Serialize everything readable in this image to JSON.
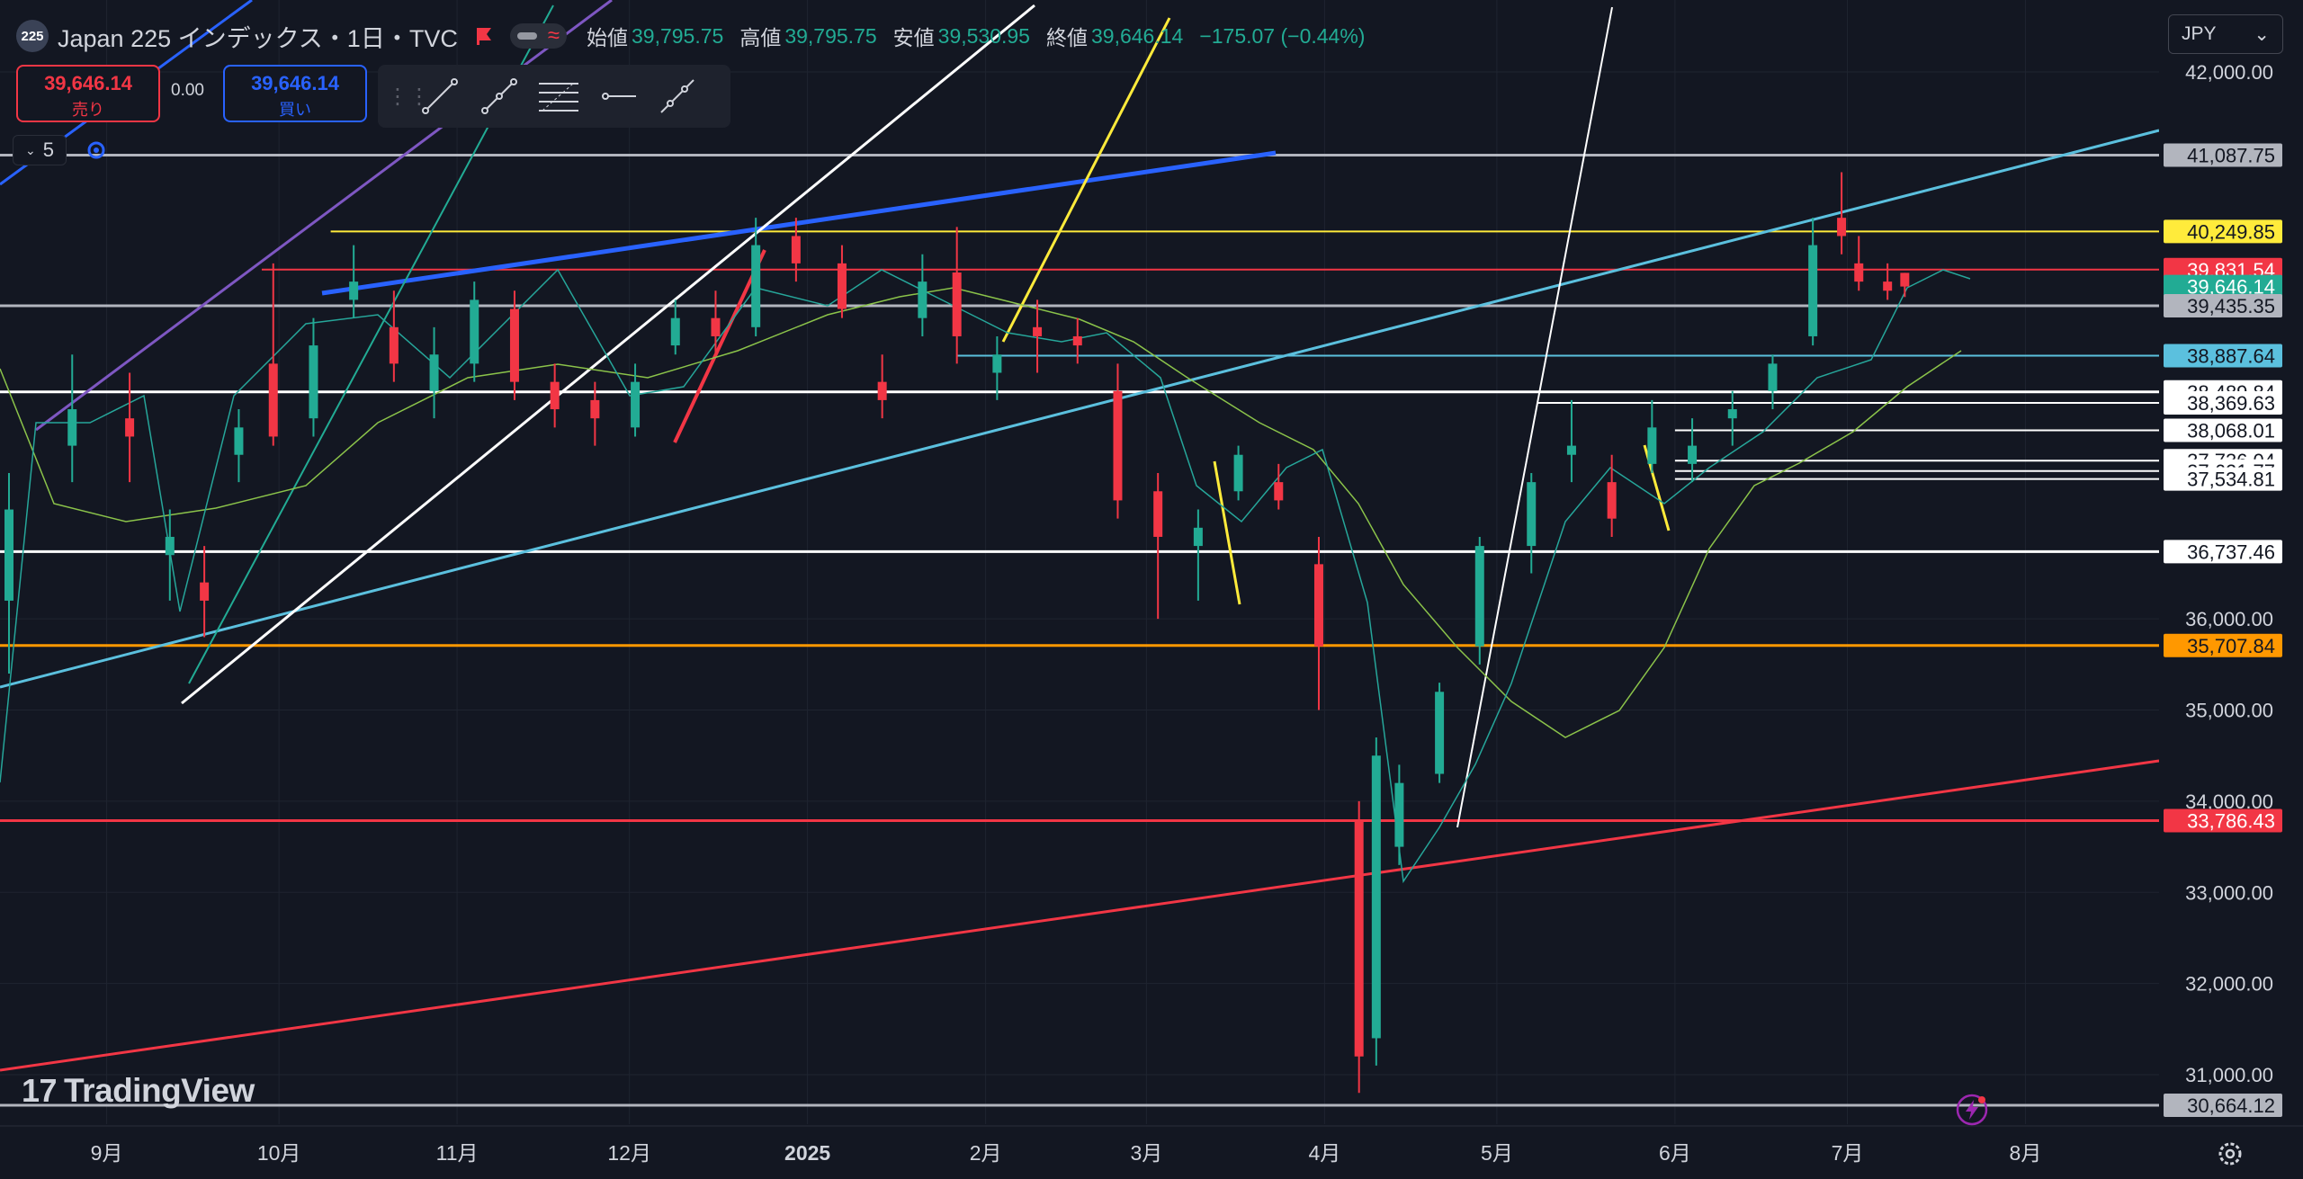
{
  "header": {
    "symbol_logo": "225",
    "title": "Japan 225 インデックス・1日・TVC",
    "ohlc": [
      {
        "label": "始値",
        "value": "39,795.75"
      },
      {
        "label": "高値",
        "value": "39,795.75"
      },
      {
        "label": "安値",
        "value": "39,530.95"
      },
      {
        "label": "終値",
        "value": "39,646.14"
      },
      {
        "label": "",
        "value": "−175.07 (−0.44%)"
      }
    ]
  },
  "trade": {
    "sell_price": "39,646.14",
    "sell_label": "売り",
    "spread": "0.00",
    "buy_price": "39,646.14",
    "buy_label": "買い"
  },
  "interval": "5",
  "currency": "JPY",
  "watermark": "TradingView",
  "toolbar_icons": [
    "trend-line-icon",
    "trend-angle-icon",
    "fib-retracement-icon",
    "horizontal-ray-icon",
    "extended-line-icon"
  ],
  "colors": {
    "up": "#22ab94",
    "down": "#f23645",
    "bg": "#131722",
    "grid": "#1f2430"
  },
  "price_axis": {
    "ticks": [
      {
        "price": 42000,
        "label": "42,000.00"
      },
      {
        "price": 36000,
        "label": "36,000.00"
      },
      {
        "price": 35000,
        "label": "35,000.00"
      },
      {
        "price": 34000,
        "label": "34,000.00"
      },
      {
        "price": 33000,
        "label": "33,000.00"
      },
      {
        "price": 32000,
        "label": "32,000.00"
      },
      {
        "price": 31000,
        "label": "31,000.00"
      }
    ],
    "badges": [
      {
        "price": 41087.75,
        "label": "41,087.75",
        "bg": "#b2b5be",
        "fg": "#131722"
      },
      {
        "price": 40249.85,
        "label": "40,249.85",
        "bg": "#ffeb3b",
        "fg": "#131722"
      },
      {
        "price": 39831.54,
        "label": "39,831.54",
        "bg": "#f23645",
        "fg": "#ffffff"
      },
      {
        "price": 39646.14,
        "label": "39,646.14",
        "bg": "#22ab94",
        "fg": "#ffffff"
      },
      {
        "price": 39435.35,
        "label": "39,435.35",
        "bg": "#b2b5be",
        "fg": "#131722"
      },
      {
        "price": 38887.64,
        "label": "38,887.64",
        "bg": "#5bc0de",
        "fg": "#131722"
      },
      {
        "price": 38489.84,
        "label": "38,489.84",
        "bg": "#ffffff",
        "fg": "#131722"
      },
      {
        "price": 38369.63,
        "label": "38,369.63",
        "bg": "#ffffff",
        "fg": "#131722"
      },
      {
        "price": 38068.01,
        "label": "38,068.01",
        "bg": "#ffffff",
        "fg": "#131722"
      },
      {
        "price": 37736.04,
        "label": "37,736.04",
        "bg": "#ffffff",
        "fg": "#131722"
      },
      {
        "price": 37621.77,
        "label": "37,621.77",
        "bg": "#ffffff",
        "fg": "#131722"
      },
      {
        "price": 37534.81,
        "label": "37,534.81",
        "bg": "#ffffff",
        "fg": "#131722"
      },
      {
        "price": 36737.46,
        "label": "36,737.46",
        "bg": "#ffffff",
        "fg": "#131722"
      },
      {
        "price": 35707.84,
        "label": "35,707.84",
        "bg": "#ff9800",
        "fg": "#131722"
      },
      {
        "price": 33786.43,
        "label": "33,786.43",
        "bg": "#f23645",
        "fg": "#ffffff"
      },
      {
        "price": 30664.12,
        "label": "30,664.12",
        "bg": "#b2b5be",
        "fg": "#131722"
      }
    ]
  },
  "time_axis": [
    {
      "date": "2024-09-01",
      "label": "9月"
    },
    {
      "date": "2024-10-01",
      "label": "10月"
    },
    {
      "date": "2024-11-01",
      "label": "11月"
    },
    {
      "date": "2024-12-01",
      "label": "12月"
    },
    {
      "date": "2025-01-01",
      "label": "2025",
      "bold": true
    },
    {
      "date": "2025-02-01",
      "label": "2月"
    },
    {
      "date": "2025-03-01",
      "label": "3月"
    },
    {
      "date": "2025-04-01",
      "label": "4月"
    },
    {
      "date": "2025-05-01",
      "label": "5月"
    },
    {
      "date": "2025-06-01",
      "label": "6月"
    },
    {
      "date": "2025-07-01",
      "label": "7月"
    },
    {
      "date": "2025-08-01",
      "label": "8月"
    }
  ],
  "horizontal_lines": [
    {
      "price": 41087.75,
      "color": "#b2b5be"
    },
    {
      "price": 40249.85,
      "color": "#ffeb3b",
      "from": "2024-10-10"
    },
    {
      "price": 39831.54,
      "color": "#f23645",
      "from": "2024-09-28"
    },
    {
      "price": 39435.35,
      "color": "#b2b5be"
    },
    {
      "price": 38887.64,
      "color": "#5bc0de",
      "from": "2025-01-27"
    },
    {
      "price": 38489.84,
      "color": "#ffffff"
    },
    {
      "price": 38369.63,
      "color": "#ffffff",
      "from": "2025-05-08"
    },
    {
      "price": 38068.01,
      "color": "#ffffff",
      "from": "2025-06-01"
    },
    {
      "price": 37736.04,
      "color": "#ffffff",
      "from": "2025-06-01"
    },
    {
      "price": 37621.77,
      "color": "#ffffff",
      "from": "2025-06-01"
    },
    {
      "price": 37534.81,
      "color": "#ffffff",
      "from": "2025-06-01"
    },
    {
      "price": 36737.46,
      "color": "#ffffff"
    },
    {
      "price": 35707.84,
      "color": "#ff9800"
    },
    {
      "price": 33786.43,
      "color": "#f23645"
    },
    {
      "price": 30664.12,
      "color": "#b2b5be"
    }
  ],
  "chart_data": {
    "type": "candlestick",
    "symbol": "Japan 225",
    "timeframe": "1日",
    "ylim": [
      30400,
      42400
    ],
    "xlim": [
      "2024-08-15",
      "2025-08-18"
    ],
    "candles": [
      [
        "2024-08-15",
        36200,
        37600,
        35400,
        37200
      ],
      [
        "2024-08-26",
        37900,
        38900,
        37500,
        38300
      ],
      [
        "2024-09-05",
        38200,
        38700,
        37500,
        38000
      ],
      [
        "2024-09-12",
        36700,
        37200,
        36200,
        36900
      ],
      [
        "2024-09-18",
        36400,
        36800,
        35800,
        36200
      ],
      [
        "2024-09-24",
        37800,
        38300,
        37500,
        38100
      ],
      [
        "2024-09-30",
        38800,
        39900,
        37900,
        38000
      ],
      [
        "2024-10-07",
        38200,
        39300,
        38000,
        39000
      ],
      [
        "2024-10-14",
        39500,
        40100,
        39300,
        39700
      ],
      [
        "2024-10-21",
        39200,
        39600,
        38600,
        38800
      ],
      [
        "2024-10-28",
        38500,
        39200,
        38200,
        38900
      ],
      [
        "2024-11-04",
        38800,
        39700,
        38600,
        39500
      ],
      [
        "2024-11-11",
        39400,
        39600,
        38400,
        38600
      ],
      [
        "2024-11-18",
        38600,
        38800,
        38100,
        38300
      ],
      [
        "2024-11-25",
        38400,
        38600,
        37900,
        38200
      ],
      [
        "2024-12-02",
        38100,
        38800,
        38000,
        38600
      ],
      [
        "2024-12-09",
        39000,
        39500,
        38900,
        39300
      ],
      [
        "2024-12-16",
        39300,
        39600,
        38900,
        39100
      ],
      [
        "2024-12-23",
        39200,
        40400,
        39100,
        40100
      ],
      [
        "2024-12-30",
        40200,
        40400,
        39700,
        39900
      ],
      [
        "2025-01-07",
        39900,
        40100,
        39300,
        39400
      ],
      [
        "2025-01-14",
        38600,
        38900,
        38200,
        38400
      ],
      [
        "2025-01-21",
        39300,
        40000,
        39100,
        39700
      ],
      [
        "2025-01-27",
        39800,
        40300,
        38800,
        39100
      ],
      [
        "2025-02-03",
        38700,
        39100,
        38400,
        38900
      ],
      [
        "2025-02-10",
        39200,
        39500,
        38700,
        39100
      ],
      [
        "2025-02-17",
        39100,
        39300,
        38800,
        39000
      ],
      [
        "2025-02-24",
        38500,
        38800,
        37100,
        37300
      ],
      [
        "2025-03-03",
        37400,
        37600,
        36000,
        36900
      ],
      [
        "2025-03-10",
        36800,
        37200,
        36200,
        37000
      ],
      [
        "2025-03-17",
        37400,
        37900,
        37300,
        37800
      ],
      [
        "2025-03-24",
        37500,
        37700,
        37200,
        37300
      ],
      [
        "2025-03-31",
        36600,
        36900,
        35000,
        35700
      ],
      [
        "2025-04-07",
        33800,
        34000,
        30800,
        31200
      ],
      [
        "2025-04-10",
        31400,
        34700,
        31100,
        34500
      ],
      [
        "2025-04-14",
        33500,
        34400,
        33300,
        34200
      ],
      [
        "2025-04-21",
        34300,
        35300,
        34200,
        35200
      ],
      [
        "2025-04-28",
        35700,
        36900,
        35500,
        36800
      ],
      [
        "2025-05-07",
        36800,
        37600,
        36500,
        37500
      ],
      [
        "2025-05-14",
        37800,
        38400,
        37500,
        37900
      ],
      [
        "2025-05-21",
        37500,
        37800,
        36900,
        37100
      ],
      [
        "2025-05-28",
        37700,
        38400,
        37600,
        38100
      ],
      [
        "2025-06-04",
        37700,
        38200,
        37500,
        37900
      ],
      [
        "2025-06-11",
        38200,
        38500,
        37900,
        38300
      ],
      [
        "2025-06-18",
        38500,
        38900,
        38300,
        38800
      ],
      [
        "2025-06-25",
        39100,
        40400,
        39000,
        40100
      ],
      [
        "2025-06-30",
        40400,
        40900,
        40000,
        40200
      ],
      [
        "2025-07-03",
        39900,
        40200,
        39600,
        39700
      ],
      [
        "2025-07-08",
        39700,
        39900,
        39500,
        39600
      ],
      [
        "2025-07-11",
        39796,
        39796,
        39531,
        39646
      ]
    ]
  }
}
